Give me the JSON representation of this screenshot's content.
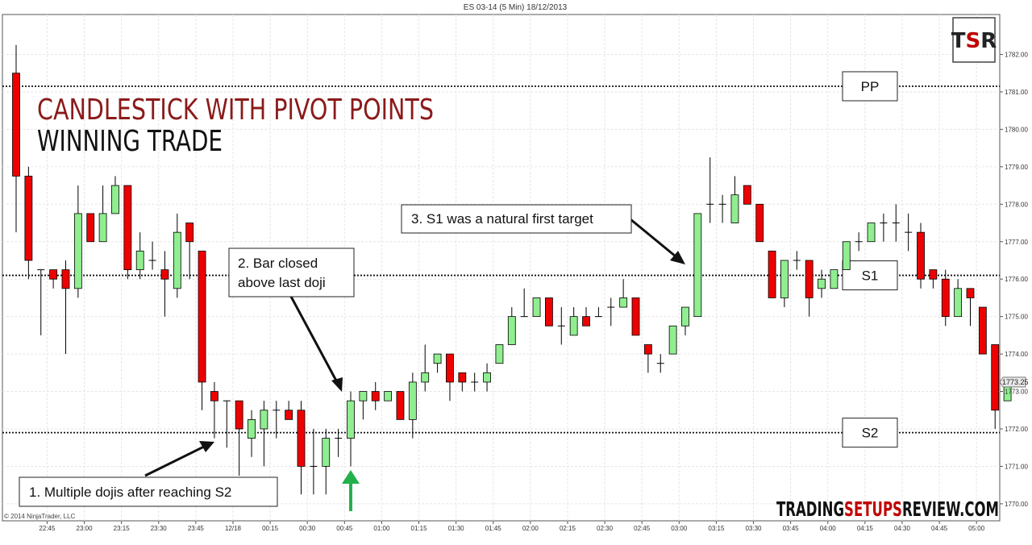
{
  "window_title": "ES 03-14 (5 Min)  18/12/2013",
  "copyright": "© 2014 NinjaTrader, LLC",
  "logo_text": "TSR",
  "headline": {
    "line1": "CANDLESTICK WITH PIVOT POINTS",
    "line2": "WINNING TRADE"
  },
  "watermark": {
    "part1": "TRADING",
    "part2": "SETUPS",
    "part3": "REVIEW.COM"
  },
  "colors": {
    "bull": "#90ee90",
    "bear": "#ee0000",
    "headline1": "#8b1a1a",
    "arrow_green": "#22b14c"
  },
  "annotations": [
    {
      "id": "note-1",
      "text": "1. Multiple  dojis after reaching S2"
    },
    {
      "id": "note-2",
      "line1": "2. Bar closed",
      "line2": "above last doji"
    },
    {
      "id": "note-3",
      "text": "3. S1 was a natural first target"
    }
  ],
  "current_price": "1773.25",
  "chart_data": {
    "type": "candlestick",
    "title": "ES 03-14 (5 Min)  18/12/2013",
    "ylim": [
      1769.75,
      1783.0
    ],
    "y_ticks": [
      "1770.00",
      "1771.00",
      "1772.00",
      "1773.00",
      "1774.00",
      "1775.00",
      "1776.00",
      "1777.00",
      "1778.00",
      "1779.00",
      "1780.00",
      "1781.00",
      "1782.00"
    ],
    "x_ticks": [
      {
        "label": "22:45",
        "index": 2
      },
      {
        "label": "23:00",
        "index": 5
      },
      {
        "label": "23:15",
        "index": 8
      },
      {
        "label": "23:30",
        "index": 11
      },
      {
        "label": "23:45",
        "index": 14
      },
      {
        "label": "12/18",
        "index": 17
      },
      {
        "label": "00:15",
        "index": 20
      },
      {
        "label": "00:30",
        "index": 23
      },
      {
        "label": "00:45",
        "index": 26
      },
      {
        "label": "01:00",
        "index": 29
      },
      {
        "label": "01:15",
        "index": 32
      },
      {
        "label": "01:30",
        "index": 35
      },
      {
        "label": "01:45",
        "index": 38
      },
      {
        "label": "02:00",
        "index": 41
      },
      {
        "label": "02:15",
        "index": 44
      },
      {
        "label": "02:30",
        "index": 47
      },
      {
        "label": "02:45",
        "index": 50
      },
      {
        "label": "03:00",
        "index": 53
      },
      {
        "label": "03:15",
        "index": 56
      },
      {
        "label": "03:30",
        "index": 59
      },
      {
        "label": "03:45",
        "index": 62
      },
      {
        "label": "04:00",
        "index": 65
      },
      {
        "label": "04:15",
        "index": 68
      },
      {
        "label": "04:30",
        "index": 71
      },
      {
        "label": "04:45",
        "index": 74
      },
      {
        "label": "05:00",
        "index": 77
      }
    ],
    "pivot_levels": [
      {
        "name": "PP",
        "value": 1781.15
      },
      {
        "name": "S1",
        "value": 1776.1
      },
      {
        "name": "S2",
        "value": 1771.9
      }
    ],
    "candles": [
      {
        "o": 1781.5,
        "h": 1782.25,
        "c": 1778.75,
        "l": 1777.25
      },
      {
        "o": 1778.75,
        "h": 1779.0,
        "c": 1776.5,
        "l": 1776.0
      },
      {
        "o": 1776.25,
        "h": 1776.25,
        "c": 1776.25,
        "l": 1774.5
      },
      {
        "o": 1776.25,
        "h": 1776.25,
        "c": 1776.0,
        "l": 1775.75
      },
      {
        "o": 1776.25,
        "h": 1776.5,
        "c": 1775.75,
        "l": 1774.0
      },
      {
        "o": 1775.75,
        "h": 1778.5,
        "c": 1777.75,
        "l": 1775.5
      },
      {
        "o": 1777.75,
        "h": 1777.75,
        "c": 1777.0,
        "l": 1777.0
      },
      {
        "o": 1777.0,
        "h": 1778.5,
        "c": 1777.75,
        "l": 1777.0
      },
      {
        "o": 1777.75,
        "h": 1778.75,
        "c": 1778.5,
        "l": 1777.75
      },
      {
        "o": 1778.5,
        "h": 1778.5,
        "c": 1776.25,
        "l": 1776.0
      },
      {
        "o": 1776.25,
        "h": 1777.25,
        "c": 1776.75,
        "l": 1776.0
      },
      {
        "o": 1776.5,
        "h": 1777.0,
        "c": 1776.5,
        "l": 1776.25
      },
      {
        "o": 1776.25,
        "h": 1776.75,
        "c": 1776.0,
        "l": 1775.0
      },
      {
        "o": 1775.75,
        "h": 1777.75,
        "c": 1777.25,
        "l": 1775.5
      },
      {
        "o": 1777.5,
        "h": 1777.5,
        "c": 1777.0,
        "l": 1776.0
      },
      {
        "o": 1776.75,
        "h": 1776.75,
        "c": 1773.25,
        "l": 1772.5
      },
      {
        "o": 1773.0,
        "h": 1773.25,
        "c": 1772.75,
        "l": 1771.75
      },
      {
        "o": 1772.75,
        "h": 1772.75,
        "c": 1772.75,
        "l": 1771.5
      },
      {
        "o": 1772.75,
        "h": 1772.75,
        "c": 1772.0,
        "l": 1770.75
      },
      {
        "o": 1771.75,
        "h": 1772.5,
        "c": 1772.25,
        "l": 1771.25
      },
      {
        "o": 1772.0,
        "h": 1772.75,
        "c": 1772.5,
        "l": 1771.0
      },
      {
        "o": 1772.5,
        "h": 1772.75,
        "c": 1772.5,
        "l": 1771.75
      },
      {
        "o": 1772.5,
        "h": 1772.75,
        "c": 1772.25,
        "l": 1772.25
      },
      {
        "o": 1772.5,
        "h": 1772.75,
        "c": 1771.0,
        "l": 1770.25
      },
      {
        "o": 1771.0,
        "h": 1772.0,
        "c": 1771.0,
        "l": 1770.25
      },
      {
        "o": 1771.0,
        "h": 1772.0,
        "c": 1771.75,
        "l": 1770.25
      },
      {
        "o": 1771.75,
        "h": 1772.0,
        "c": 1771.75,
        "l": 1771.25
      },
      {
        "o": 1771.75,
        "h": 1773.0,
        "c": 1772.75,
        "l": 1771.0
      },
      {
        "o": 1772.75,
        "h": 1773.0,
        "c": 1773.0,
        "l": 1772.25
      },
      {
        "o": 1773.0,
        "h": 1773.25,
        "c": 1772.75,
        "l": 1772.5
      },
      {
        "o": 1772.75,
        "h": 1773.0,
        "c": 1773.0,
        "l": 1772.75
      },
      {
        "o": 1773.0,
        "h": 1773.0,
        "c": 1772.25,
        "l": 1772.25
      },
      {
        "o": 1772.25,
        "h": 1773.5,
        "c": 1773.25,
        "l": 1771.75
      },
      {
        "o": 1773.25,
        "h": 1774.25,
        "c": 1773.5,
        "l": 1773.0
      },
      {
        "o": 1773.75,
        "h": 1774.0,
        "c": 1774.0,
        "l": 1773.5
      },
      {
        "o": 1774.0,
        "h": 1774.0,
        "c": 1773.25,
        "l": 1772.75
      },
      {
        "o": 1773.5,
        "h": 1773.5,
        "c": 1773.25,
        "l": 1773.0
      },
      {
        "o": 1773.25,
        "h": 1773.5,
        "c": 1773.25,
        "l": 1773.0
      },
      {
        "o": 1773.25,
        "h": 1773.75,
        "c": 1773.5,
        "l": 1773.0
      },
      {
        "o": 1773.75,
        "h": 1774.25,
        "c": 1774.25,
        "l": 1773.75
      },
      {
        "o": 1774.25,
        "h": 1775.25,
        "c": 1775.0,
        "l": 1774.25
      },
      {
        "o": 1775.0,
        "h": 1775.75,
        "c": 1775.0,
        "l": 1775.0
      },
      {
        "o": 1775.0,
        "h": 1775.5,
        "c": 1775.5,
        "l": 1775.0
      },
      {
        "o": 1775.5,
        "h": 1775.5,
        "c": 1774.75,
        "l": 1774.75
      },
      {
        "o": 1774.75,
        "h": 1775.25,
        "c": 1774.75,
        "l": 1774.25
      },
      {
        "o": 1774.5,
        "h": 1775.25,
        "c": 1775.0,
        "l": 1774.5
      },
      {
        "o": 1775.0,
        "h": 1775.25,
        "c": 1774.75,
        "l": 1774.75
      },
      {
        "o": 1775.0,
        "h": 1775.25,
        "c": 1775.0,
        "l": 1775.0
      },
      {
        "o": 1775.25,
        "h": 1775.5,
        "c": 1775.25,
        "l": 1774.75
      },
      {
        "o": 1775.25,
        "h": 1776.0,
        "c": 1775.5,
        "l": 1775.25
      },
      {
        "o": 1775.5,
        "h": 1775.5,
        "c": 1774.5,
        "l": 1774.5
      },
      {
        "o": 1774.25,
        "h": 1774.25,
        "c": 1774.0,
        "l": 1773.5
      },
      {
        "o": 1773.75,
        "h": 1774.0,
        "c": 1773.75,
        "l": 1773.5
      },
      {
        "o": 1774.0,
        "h": 1774.75,
        "c": 1774.75,
        "l": 1774.0
      },
      {
        "o": 1774.75,
        "h": 1775.25,
        "c": 1775.25,
        "l": 1774.5
      },
      {
        "o": 1775.0,
        "h": 1777.75,
        "c": 1777.75,
        "l": 1775.0
      },
      {
        "o": 1778.0,
        "h": 1779.25,
        "c": 1778.0,
        "l": 1777.5
      },
      {
        "o": 1778.0,
        "h": 1778.25,
        "c": 1778.0,
        "l": 1777.5
      },
      {
        "o": 1777.5,
        "h": 1778.75,
        "c": 1778.25,
        "l": 1777.5
      },
      {
        "o": 1778.5,
        "h": 1778.5,
        "c": 1778.0,
        "l": 1778.0
      },
      {
        "o": 1778.0,
        "h": 1778.0,
        "c": 1777.0,
        "l": 1777.0
      },
      {
        "o": 1776.75,
        "h": 1776.75,
        "c": 1775.5,
        "l": 1775.5
      },
      {
        "o": 1775.5,
        "h": 1776.5,
        "c": 1776.5,
        "l": 1775.25
      },
      {
        "o": 1776.5,
        "h": 1776.75,
        "c": 1776.5,
        "l": 1776.25
      },
      {
        "o": 1776.5,
        "h": 1776.5,
        "c": 1775.5,
        "l": 1775.0
      },
      {
        "o": 1775.75,
        "h": 1776.25,
        "c": 1776.0,
        "l": 1775.5
      },
      {
        "o": 1775.75,
        "h": 1776.25,
        "c": 1776.25,
        "l": 1775.75
      },
      {
        "o": 1776.25,
        "h": 1777.0,
        "c": 1777.0,
        "l": 1776.25
      },
      {
        "o": 1777.0,
        "h": 1777.25,
        "c": 1777.0,
        "l": 1776.75
      },
      {
        "o": 1777.0,
        "h": 1777.5,
        "c": 1777.5,
        "l": 1777.0
      },
      {
        "o": 1777.5,
        "h": 1777.75,
        "c": 1777.5,
        "l": 1777.0
      },
      {
        "o": 1777.5,
        "h": 1778.0,
        "c": 1777.5,
        "l": 1777.0
      },
      {
        "o": 1777.25,
        "h": 1777.75,
        "c": 1777.25,
        "l": 1776.75
      },
      {
        "o": 1777.25,
        "h": 1777.5,
        "c": 1776.0,
        "l": 1775.75
      },
      {
        "o": 1776.25,
        "h": 1776.25,
        "c": 1776.0,
        "l": 1775.75
      },
      {
        "o": 1776.0,
        "h": 1776.25,
        "c": 1775.0,
        "l": 1774.75
      },
      {
        "o": 1775.0,
        "h": 1776.0,
        "c": 1775.75,
        "l": 1775.0
      },
      {
        "o": 1775.75,
        "h": 1775.75,
        "c": 1775.5,
        "l": 1774.75
      },
      {
        "o": 1775.25,
        "h": 1775.25,
        "c": 1774.0,
        "l": 1774.0
      },
      {
        "o": 1774.25,
        "h": 1774.25,
        "c": 1772.5,
        "l": 1772.0
      },
      {
        "o": 1772.75,
        "h": 1773.25,
        "c": 1773.25,
        "l": 1772.75
      }
    ]
  }
}
